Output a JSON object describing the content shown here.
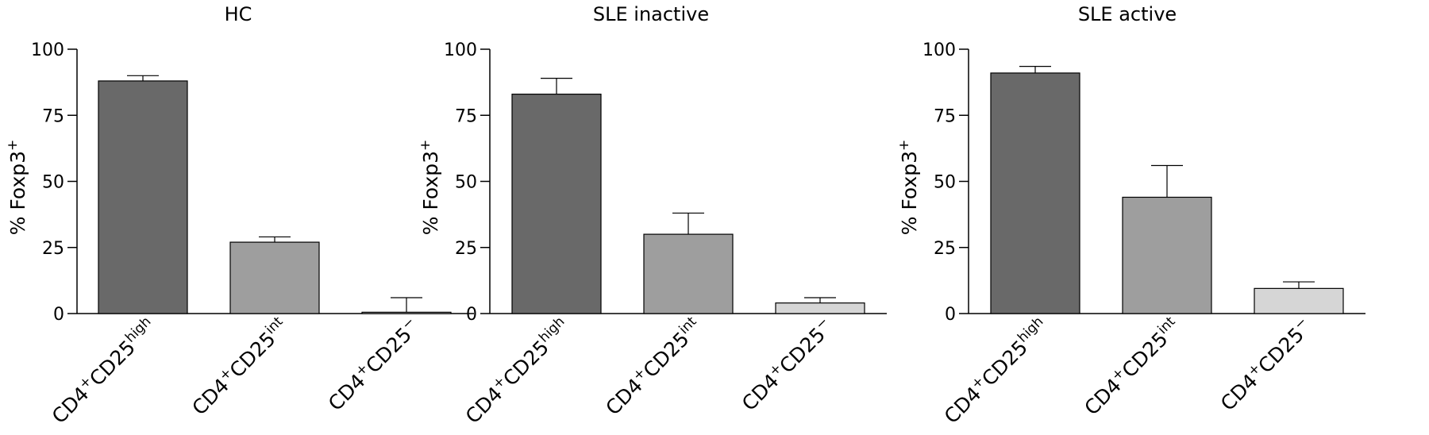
{
  "chart_data": [
    {
      "type": "bar",
      "title": "HC",
      "ylabel": {
        "main": "% Foxp3",
        "sup": "+"
      },
      "ylim": [
        0,
        100
      ],
      "yticks": [
        "0",
        "25",
        "50",
        "75",
        "100"
      ],
      "categories": [
        {
          "parts": [
            [
              "CD4",
              ""
            ],
            [
              "+",
              "sup"
            ],
            [
              "CD25",
              ""
            ],
            [
              "high",
              "sup"
            ]
          ]
        },
        {
          "parts": [
            [
              "CD4",
              ""
            ],
            [
              "+",
              "sup"
            ],
            [
              "CD25",
              ""
            ],
            [
              "int",
              "sup"
            ]
          ]
        },
        {
          "parts": [
            [
              "CD4",
              ""
            ],
            [
              "+",
              "sup"
            ],
            [
              "CD25",
              ""
            ],
            [
              "−",
              "sup"
            ]
          ]
        }
      ],
      "values": [
        88,
        27,
        0.5
      ],
      "errors": [
        2,
        2,
        5.5
      ],
      "bar_colors": [
        "#696969",
        "#9e9e9e",
        "#d6d6d6"
      ]
    },
    {
      "type": "bar",
      "title": "SLE inactive",
      "ylabel": {
        "main": "% Foxp3",
        "sup": "+"
      },
      "ylim": [
        0,
        100
      ],
      "yticks": [
        "0",
        "25",
        "50",
        "75",
        "100"
      ],
      "categories": [
        {
          "parts": [
            [
              "CD4",
              ""
            ],
            [
              "+",
              "sup"
            ],
            [
              "CD25",
              ""
            ],
            [
              "high",
              "sup"
            ]
          ]
        },
        {
          "parts": [
            [
              "CD4",
              ""
            ],
            [
              "+",
              "sup"
            ],
            [
              "CD25",
              ""
            ],
            [
              "int",
              "sup"
            ]
          ]
        },
        {
          "parts": [
            [
              "CD4",
              ""
            ],
            [
              "+",
              "sup"
            ],
            [
              "CD25",
              ""
            ],
            [
              "−",
              "sup"
            ]
          ]
        }
      ],
      "values": [
        83,
        30,
        4
      ],
      "errors": [
        6,
        8,
        2
      ],
      "bar_colors": [
        "#696969",
        "#9e9e9e",
        "#d6d6d6"
      ]
    },
    {
      "type": "bar",
      "title": "SLE active",
      "ylabel": {
        "main": "% Foxp3",
        "sup": "+"
      },
      "ylim": [
        0,
        100
      ],
      "yticks": [
        "0",
        "25",
        "50",
        "75",
        "100"
      ],
      "categories": [
        {
          "parts": [
            [
              "CD4",
              ""
            ],
            [
              "+",
              "sup"
            ],
            [
              "CD25",
              ""
            ],
            [
              "high",
              "sup"
            ]
          ]
        },
        {
          "parts": [
            [
              "CD4",
              ""
            ],
            [
              "+",
              "sup"
            ],
            [
              "CD25",
              ""
            ],
            [
              "int",
              "sup"
            ]
          ]
        },
        {
          "parts": [
            [
              "CD4",
              ""
            ],
            [
              "+",
              "sup"
            ],
            [
              "CD25",
              ""
            ],
            [
              "−",
              "sup"
            ]
          ]
        }
      ],
      "values": [
        91,
        44,
        9.5
      ],
      "errors": [
        2.5,
        12,
        2.5
      ],
      "bar_colors": [
        "#696969",
        "#9e9e9e",
        "#d6d6d6"
      ]
    }
  ]
}
